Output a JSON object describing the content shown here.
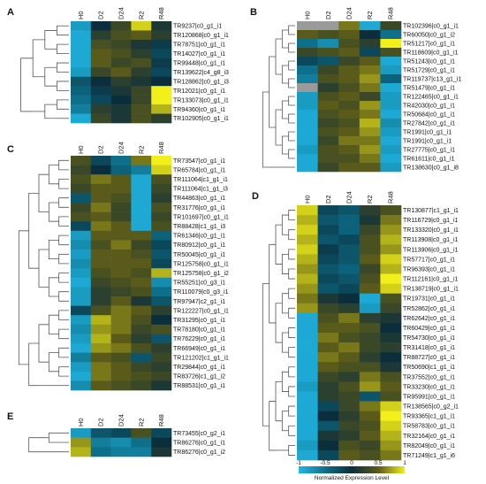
{
  "chart_data": {
    "type": "heatmap",
    "color_scale": {
      "min": -1,
      "max": 1,
      "ticks": [
        "-1",
        "-0.5",
        "0",
        "0.5",
        "1"
      ],
      "title": "Normalized Expression Level",
      "stops": [
        "#22b8e6",
        "#0e6f8a",
        "#0b2e3d",
        "#5a5a1a",
        "#f2ef1a"
      ],
      "missing_color": "#9a9a9a"
    },
    "panels": [
      {
        "letter": "A",
        "columns": [
          "H0",
          "D2",
          "D24",
          "R2",
          "R48"
        ],
        "rows": [
          "TR9237|c0_g1_i1",
          "TR120868|c0_g1_i1",
          "TR78751|c0_g1_i1",
          "TR14027|c0_g1_i1",
          "TR99448|c0_g1_i1",
          "TR139622|c4_g8_i3",
          "TR128862|c0_g1_i3",
          "TR12021|c0_g1_i1",
          "TR133073|c0_g1_i1",
          "TR94360|c0_g1_i1",
          "TR102905|c0_g1_i1"
        ],
        "values": [
          [
            -0.8,
            0.0,
            0.3,
            0.9,
            0.1
          ],
          [
            -0.9,
            0.2,
            0.4,
            0.5,
            0.2
          ],
          [
            -0.9,
            0.4,
            0.3,
            0.1,
            -0.1
          ],
          [
            -0.9,
            0.5,
            0.4,
            0.2,
            -0.2
          ],
          [
            -0.9,
            0.5,
            0.3,
            0.4,
            -0.1
          ],
          [
            -0.8,
            0.3,
            0.5,
            0.2,
            -0.2
          ],
          [
            -0.3,
            0.0,
            0.2,
            0.1,
            0.0
          ],
          [
            -0.4,
            -0.1,
            0.1,
            0.3,
            1.0
          ],
          [
            -0.5,
            -0.2,
            0.0,
            0.3,
            1.0
          ],
          [
            -0.6,
            0.2,
            0.1,
            0.4,
            0.8
          ],
          [
            -0.9,
            0.3,
            0.1,
            0.4,
            0.2
          ]
        ]
      },
      {
        "letter": "B",
        "columns": [
          "H0",
          "D2",
          "D24",
          "R2",
          "R48"
        ],
        "rows": [
          "TR102396|c0_g1_i1",
          "TR60050|c0_g1_i2",
          "TR51217|c0_g1_i1",
          "TR118609|c0_g1_i1",
          "TR51243|c0_g1_i1",
          "TR51729|c0_g1_i1",
          "TR119737|c13_g1_i1",
          "TR51479|c0_g1_i1",
          "TR122465|c0_g1_i1",
          "TR42030|c0_g1_i1",
          "TR50684|c0_g1_i1",
          "TR27842|c0_g1_i1",
          "TR1991|c0_g1_i1",
          "TR1991|c0_g1_i1",
          "TR27775|c0_g1_i1",
          "TR61611|c0_g1_i1",
          "TR138630|c0_g1_i8"
        ],
        "values": [
          [
            null,
            null,
            0.6,
            -0.9,
            0.3
          ],
          [
            0.5,
            0.4,
            0.5,
            0.0,
            -0.5
          ],
          [
            -0.5,
            -0.7,
            0.4,
            0.2,
            1.0
          ],
          [
            0.3,
            0.4,
            0.5,
            -0.2,
            0.4
          ],
          [
            -0.2,
            -0.3,
            0.3,
            0.5,
            -0.9
          ],
          [
            -0.5,
            0.3,
            0.5,
            0.6,
            -0.8
          ],
          [
            -0.6,
            0.4,
            0.5,
            0.7,
            -0.4
          ],
          [
            null,
            0.2,
            0.4,
            0.6,
            -0.9
          ],
          [
            -0.8,
            0.4,
            0.5,
            0.3,
            -0.8
          ],
          [
            -0.8,
            0.5,
            0.4,
            0.7,
            -0.8
          ],
          [
            -0.9,
            0.4,
            0.5,
            0.6,
            -0.9
          ],
          [
            -0.9,
            0.3,
            0.4,
            0.8,
            -0.7
          ],
          [
            -0.9,
            0.4,
            0.5,
            0.7,
            -0.8
          ],
          [
            -0.9,
            0.3,
            0.6,
            0.6,
            -0.9
          ],
          [
            -0.8,
            0.4,
            0.5,
            0.7,
            -0.8
          ],
          [
            -0.9,
            0.4,
            0.4,
            0.6,
            -0.9
          ],
          [
            -0.9,
            0.3,
            0.5,
            0.5,
            -0.8
          ]
        ]
      },
      {
        "letter": "C",
        "columns": [
          "H0",
          "D2",
          "D24",
          "R2",
          "R48"
        ],
        "rows": [
          "TR73547|c0_g1_i1",
          "TR65784|c0_g1_i1",
          "TR111064|c1_g1_i1",
          "TR111064|c1_g1_i3",
          "TR44863|c0_g1_i1",
          "TR31776|c0_g1_i1",
          "TR101697|c0_g1_i1",
          "TR88428|c1_g1_i3",
          "TR61346|c0_g1_i1",
          "TR80912|c0_g1_i1",
          "TR50045|c0_g1_i1",
          "TR125758|c0_g1_i1",
          "TR125758|c0_g1_i2",
          "TR55251|c0_g3_i1",
          "TR110079|c0_g3_i1",
          "TR97947|c2_g1_i1",
          "TR122227|c0_g1_i1",
          "TR31295|c0_g1_i1",
          "TR78180|c0_g1_i1",
          "TR76229|c0_g1_i1",
          "TR66949|c0_g1_i1",
          "TR121202|c1_g1_i1",
          "TR29844|c0_g1_i1",
          "TR83726|c1_g1_i2",
          "TR88531|c0_g1_i1"
        ],
        "values": [
          [
            0.4,
            -0.2,
            -0.5,
            0.6,
            1.0
          ],
          [
            0.3,
            0.0,
            -0.4,
            -0.6,
            0.9
          ],
          [
            0.4,
            0.6,
            0.5,
            -0.9,
            0.4
          ],
          [
            0.3,
            0.5,
            0.5,
            -0.9,
            0.3
          ],
          [
            -0.3,
            0.5,
            0.4,
            -0.9,
            0.2
          ],
          [
            0.3,
            0.6,
            0.3,
            -0.9,
            0.4
          ],
          [
            0.4,
            0.5,
            0.3,
            -0.9,
            0.3
          ],
          [
            -0.2,
            0.6,
            0.5,
            -0.9,
            0.4
          ],
          [
            -0.8,
            0.5,
            0.5,
            0.5,
            -0.4
          ],
          [
            -0.7,
            0.4,
            0.6,
            0.3,
            -0.2
          ],
          [
            -0.8,
            0.5,
            0.5,
            0.4,
            -0.3
          ],
          [
            -0.7,
            0.5,
            0.5,
            0.5,
            -0.2
          ],
          [
            -0.8,
            0.4,
            0.5,
            0.4,
            0.8
          ],
          [
            -0.9,
            0.3,
            0.4,
            0.5,
            -0.7
          ],
          [
            -0.8,
            0.2,
            0.3,
            0.4,
            -0.5
          ],
          [
            -0.8,
            0.2,
            0.5,
            0.1,
            -0.3
          ],
          [
            -0.2,
            0.4,
            0.6,
            0.5,
            0.2
          ],
          [
            -0.8,
            0.8,
            0.6,
            0.4,
            0.0
          ],
          [
            -0.7,
            0.7,
            0.6,
            0.3,
            0.4
          ],
          [
            -0.8,
            0.8,
            0.5,
            0.2,
            -0.3
          ],
          [
            -0.9,
            0.7,
            0.6,
            0.4,
            0.2
          ],
          [
            -0.6,
            0.5,
            0.4,
            -0.3,
            0.3
          ],
          [
            -0.8,
            0.6,
            0.5,
            0.3,
            0.2
          ],
          [
            -0.9,
            0.6,
            0.5,
            0.4,
            0.3
          ],
          [
            -0.7,
            0.5,
            0.4,
            0.3,
            0.1
          ]
        ]
      },
      {
        "letter": "D",
        "columns": [
          "H0",
          "D2",
          "D24",
          "R2",
          "R48"
        ],
        "rows": [
          "TR130877|c1_g1_i1",
          "TR116729|c0_g1_i1",
          "TR133320|c0_g1_i1",
          "TR113908|c0_g1_i1",
          "TR113906|c0_g1_i1",
          "TR57717|c0_g1_i1",
          "TR96393|c0_g1_i1",
          "TR112161|c0_g1_i1",
          "TR138719|c0_g1_i1",
          "TR19731|c0_g1_i1",
          "TR52862|c0_g1_i1",
          "TR62642|c0_g1_i1",
          "TR60429|c0_g1_i1",
          "TR54730|c0_g1_i1",
          "TR31418|c0_g1_i1",
          "TR88727|c0_g1_i1",
          "TR50690|c1_g1_i1",
          "TR37552|c0_g1_i1",
          "TR33230|c0_g1_i1",
          "TR95991|c0_g1_i1",
          "TR138565|c0_g2_i1",
          "TR93365|c1_g1_i1",
          "TR58783|c0_g1_i1",
          "TR32164|c0_g1_i1",
          "TR82049|c0_g1_i1",
          "TR71249|c1_g1_i6"
        ],
        "values": [
          [
            0.9,
            -0.2,
            -0.3,
            0.2,
            0.4
          ],
          [
            0.8,
            -0.3,
            -0.4,
            0.1,
            0.6
          ],
          [
            0.9,
            -0.2,
            -0.4,
            0.3,
            0.7
          ],
          [
            0.8,
            -0.3,
            -0.2,
            0.4,
            0.8
          ],
          [
            0.9,
            -0.1,
            -0.3,
            0.4,
            0.7
          ],
          [
            0.8,
            -0.2,
            -0.3,
            0.5,
            0.9
          ],
          [
            0.7,
            -0.3,
            -0.4,
            0.3,
            0.8
          ],
          [
            0.8,
            -0.2,
            -0.3,
            0.4,
            1.0
          ],
          [
            0.7,
            -0.3,
            -0.2,
            0.5,
            0.9
          ],
          [
            0.6,
            0.1,
            0.0,
            -0.9,
            0.4
          ],
          [
            0.7,
            0.3,
            0.2,
            -0.8,
            0.3
          ],
          [
            -0.9,
            0.4,
            0.6,
            0.2,
            0.1
          ],
          [
            -0.9,
            0.5,
            0.5,
            0.4,
            0.0
          ],
          [
            -0.9,
            0.6,
            0.4,
            0.3,
            0.1
          ],
          [
            -0.9,
            0.5,
            0.6,
            0.3,
            0.2
          ],
          [
            -0.9,
            0.6,
            0.5,
            0.2,
            0.0
          ],
          [
            -0.9,
            0.5,
            0.4,
            0.4,
            0.1
          ],
          [
            -0.9,
            0.3,
            0.2,
            0.6,
            0.4
          ],
          [
            -0.8,
            0.2,
            0.4,
            0.7,
            0.5
          ],
          [
            -0.9,
            0.2,
            0.3,
            -0.3,
            0.4
          ],
          [
            -0.9,
            -0.2,
            0.3,
            0.6,
            0.9
          ],
          [
            -0.9,
            0.0,
            0.2,
            0.5,
            1.0
          ],
          [
            -0.9,
            -0.3,
            0.3,
            0.4,
            0.9
          ],
          [
            -0.9,
            0.1,
            0.2,
            0.5,
            0.8
          ],
          [
            -0.8,
            0.0,
            0.4,
            0.3,
            0.7
          ],
          [
            -0.9,
            -0.2,
            0.5,
            0.4,
            0.6
          ]
        ]
      },
      {
        "letter": "E",
        "columns": [
          "H0",
          "D2",
          "D24",
          "R2",
          "R48"
        ],
        "rows": [
          "TR73455|c0_g2_i1",
          "TR86276|c0_g1_i1",
          "TR86276|c0_g1_i2"
        ],
        "values": [
          [
            -0.8,
            -0.3,
            -0.2,
            0.4,
            -0.2
          ],
          [
            0.7,
            -0.6,
            -0.7,
            -0.5,
            0.0
          ],
          [
            0.8,
            -0.5,
            -0.6,
            -0.6,
            0.1
          ]
        ]
      }
    ]
  }
}
